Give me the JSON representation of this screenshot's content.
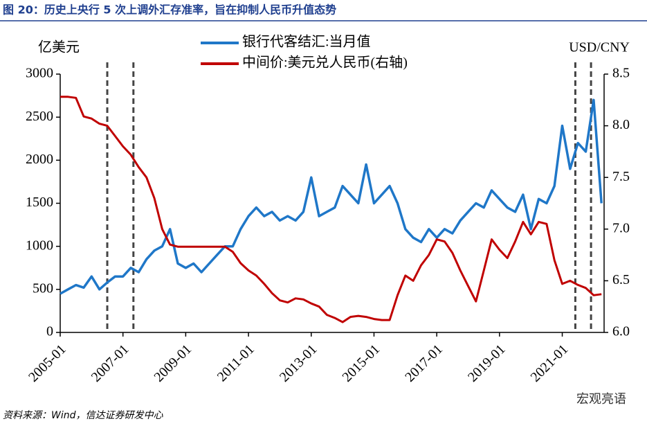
{
  "chart_data": {
    "type": "line",
    "title": "图 20：历史上央行 5 次上调外汇存准率，旨在抑制人民币升值态势",
    "y_label": "亿美元",
    "y2_label": "USD/CNY",
    "source": "资料来源：Wind，信达证券研发中心",
    "watermark": "宏观亮语",
    "legend": "top",
    "x": [
      "2005-01",
      "2005-04",
      "2005-07",
      "2005-10",
      "2006-01",
      "2006-04",
      "2006-07",
      "2006-10",
      "2007-01",
      "2007-04",
      "2007-07",
      "2007-10",
      "2008-01",
      "2008-04",
      "2008-07",
      "2008-10",
      "2009-01",
      "2009-04",
      "2009-07",
      "2009-10",
      "2010-01",
      "2010-04",
      "2010-07",
      "2010-10",
      "2011-01",
      "2011-04",
      "2011-07",
      "2011-10",
      "2012-01",
      "2012-04",
      "2012-07",
      "2012-10",
      "2013-01",
      "2013-04",
      "2013-07",
      "2013-10",
      "2014-01",
      "2014-04",
      "2014-07",
      "2014-10",
      "2015-01",
      "2015-04",
      "2015-07",
      "2015-10",
      "2016-01",
      "2016-04",
      "2016-07",
      "2016-10",
      "2017-01",
      "2017-04",
      "2017-07",
      "2017-10",
      "2018-01",
      "2018-04",
      "2018-07",
      "2018-10",
      "2019-01",
      "2019-04",
      "2019-07",
      "2019-10",
      "2020-01",
      "2020-04",
      "2020-07",
      "2020-10",
      "2021-01",
      "2021-04",
      "2021-07",
      "2021-10",
      "2022-01",
      "2022-04"
    ],
    "series": [
      {
        "name": "银行代客结汇:当月值",
        "color": "#1f77c8",
        "axis": "y",
        "values": [
          450,
          500,
          550,
          520,
          650,
          500,
          580,
          650,
          650,
          750,
          700,
          850,
          950,
          1000,
          1200,
          800,
          750,
          800,
          700,
          800,
          900,
          1000,
          1000,
          1200,
          1350,
          1450,
          1350,
          1400,
          1300,
          1350,
          1300,
          1400,
          1800,
          1350,
          1400,
          1450,
          1700,
          1600,
          1500,
          1950,
          1500,
          1600,
          1700,
          1500,
          1200,
          1100,
          1050,
          1200,
          1100,
          1200,
          1150,
          1300,
          1400,
          1500,
          1450,
          1650,
          1550,
          1450,
          1400,
          1600,
          1200,
          1550,
          1500,
          1700,
          2400,
          1900,
          2200,
          2100,
          2700,
          1500
        ]
      },
      {
        "name": "中间价:美元兑人民币(右轴)",
        "color": "#c00000",
        "axis": "y2",
        "values": [
          8.28,
          8.28,
          8.27,
          8.09,
          8.07,
          8.02,
          8.0,
          7.9,
          7.8,
          7.72,
          7.6,
          7.5,
          7.3,
          7.0,
          6.85,
          6.83,
          6.83,
          6.83,
          6.83,
          6.83,
          6.83,
          6.83,
          6.78,
          6.67,
          6.6,
          6.55,
          6.47,
          6.38,
          6.31,
          6.29,
          6.33,
          6.32,
          6.28,
          6.25,
          6.17,
          6.14,
          6.1,
          6.15,
          6.16,
          6.15,
          6.13,
          6.12,
          6.12,
          6.36,
          6.55,
          6.5,
          6.65,
          6.75,
          6.9,
          6.88,
          6.77,
          6.6,
          6.45,
          6.3,
          6.6,
          6.9,
          6.8,
          6.72,
          6.88,
          7.07,
          6.95,
          7.07,
          7.05,
          6.7,
          6.47,
          6.5,
          6.46,
          6.43,
          6.36,
          6.37
        ]
      }
    ],
    "events": [
      "2006-07",
      "2007-05",
      "2021-06",
      "2021-12"
    ],
    "xlim": [
      "2005-01",
      "2022-05"
    ],
    "xticks": [
      "2005-01",
      "2007-01",
      "2009-01",
      "2011-01",
      "2013-01",
      "2015-01",
      "2017-01",
      "2019-01",
      "2021-01"
    ],
    "ylim": [
      0,
      3000
    ],
    "yticks": [
      0,
      500,
      1000,
      1500,
      2000,
      2500,
      3000
    ],
    "y2lim": [
      6,
      8.5
    ],
    "y2ticks": [
      {
        "value": 6,
        "label": "6.0"
      },
      6.5,
      {
        "value": 7,
        "label": "7.0"
      },
      7.5,
      {
        "value": 8,
        "label": "8.0"
      },
      8.5
    ]
  }
}
